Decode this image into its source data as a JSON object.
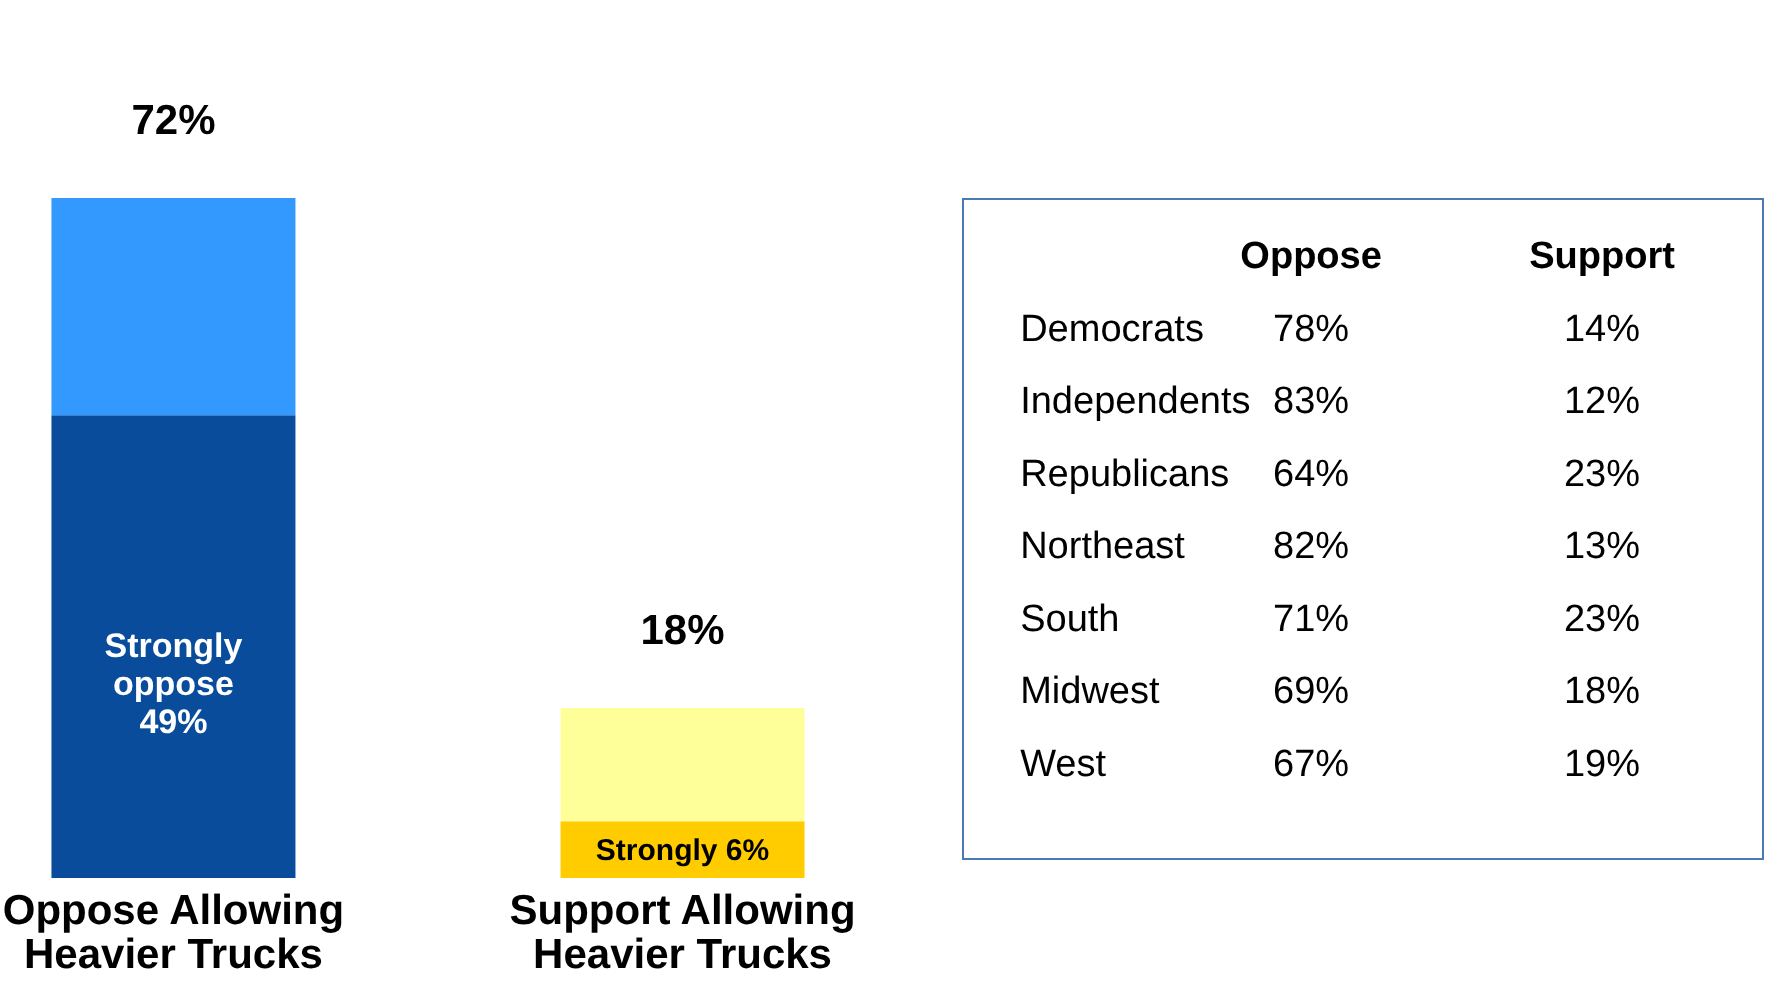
{
  "chart_data": [
    {
      "type": "bar",
      "stacked": true,
      "categories": [
        "Oppose Allowing Heavier Trucks",
        "Support Allowing Heavier Trucks"
      ],
      "series": [
        {
          "colors": [
            "#0a4c9c",
            "#ffcc00"
          ],
          "values": [
            49,
            6
          ],
          "value_labels": [
            "Strongly\noppose\n49%",
            "Strongly  6%"
          ]
        },
        {
          "colors": [
            "#3399ff",
            "#ffff99"
          ],
          "values": [
            23,
            12
          ]
        }
      ],
      "totals": [
        "72%",
        "18%"
      ]
    },
    {
      "type": "other",
      "annotations": [
        "Oppose",
        "Support",
        "Democrats",
        "78%",
        "14%",
        "Independents",
        "83%",
        "12%",
        "Republicans",
        "64%",
        "23%",
        "Northeast",
        "82%",
        "13%",
        "South",
        "71%",
        "23%",
        "Midwest",
        "69%",
        "18%",
        "West",
        "67%",
        "19%"
      ]
    }
  ]
}
